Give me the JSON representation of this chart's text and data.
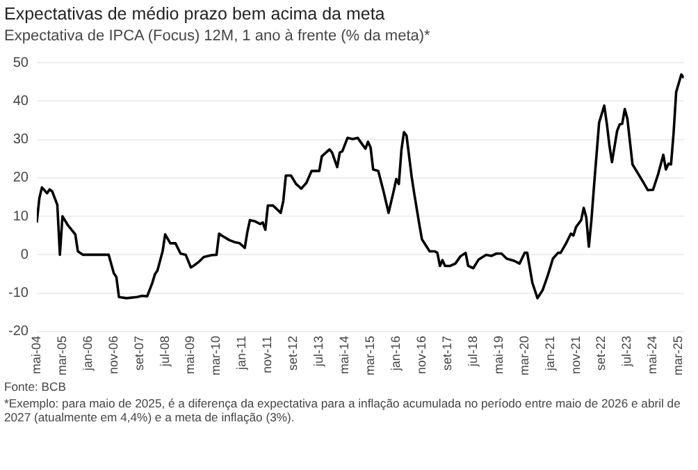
{
  "chart_data": {
    "type": "line",
    "title": "Expectativas de médio prazo bem acima da meta",
    "subtitle": "Expectativa de IPCA (Focus) 12M, 1 ano à frente (% da meta)*",
    "annotations": [
      "Fonte: BCB",
      "*Exemplo: para maio de 2025, é a diferença da expectativa para a inflação acumulada no período entre maio de 2026 e abril de 2027 (atualmente em 4,4%) e a meta de inflação (3%)."
    ],
    "x": [
      "2004-05",
      "2004-06",
      "2004-07",
      "2004-08",
      "2004-09",
      "2004-10",
      "2004-11",
      "2005-01",
      "2005-02",
      "2005-03",
      "2005-05",
      "2005-08",
      "2005-09",
      "2005-11",
      "2006-09",
      "2006-11",
      "2006-12",
      "2007-01",
      "2007-04",
      "2007-08",
      "2007-10",
      "2007-12",
      "2008-02",
      "2008-03",
      "2008-04",
      "2008-06",
      "2008-07",
      "2008-09",
      "2008-11",
      "2009-01",
      "2009-03",
      "2009-05",
      "2009-06",
      "2009-08",
      "2009-10",
      "2010-01",
      "2010-03",
      "2010-04",
      "2010-05",
      "2010-08",
      "2010-10",
      "2010-12",
      "2011-02",
      "2011-03",
      "2011-04",
      "2011-06",
      "2011-08",
      "2011-09",
      "2011-10",
      "2011-11",
      "2012-01",
      "2012-04",
      "2012-05",
      "2012-06",
      "2012-08",
      "2012-10",
      "2012-12",
      "2013-02",
      "2013-04",
      "2013-07",
      "2013-08",
      "2013-11",
      "2013-12",
      "2014-02",
      "2014-03",
      "2014-04",
      "2014-06",
      "2014-08",
      "2014-10",
      "2014-12",
      "2015-01",
      "2015-02",
      "2015-03",
      "2015-04",
      "2015-06",
      "2015-08",
      "2015-10",
      "2015-12",
      "2016-01",
      "2016-02",
      "2016-03",
      "2016-04",
      "2016-05",
      "2016-07",
      "2016-08",
      "2016-10",
      "2016-11",
      "2017-02",
      "2017-04",
      "2017-05",
      "2017-06",
      "2017-07",
      "2017-08",
      "2017-10",
      "2017-12",
      "2018-02",
      "2018-04",
      "2018-05",
      "2018-07",
      "2018-09",
      "2018-12",
      "2019-02",
      "2019-04",
      "2019-06",
      "2019-08",
      "2019-11",
      "2020-01",
      "2020-03",
      "2020-04",
      "2020-06",
      "2020-08",
      "2020-10",
      "2020-12",
      "2021-02",
      "2021-04",
      "2021-05",
      "2021-07",
      "2021-09",
      "2021-10",
      "2021-11",
      "2022-01",
      "2022-02",
      "2022-03",
      "2022-04",
      "2022-05",
      "2022-06",
      "2022-08",
      "2022-10",
      "2022-11",
      "2022-12",
      "2023-01",
      "2023-03",
      "2023-04",
      "2023-05",
      "2023-06",
      "2023-07",
      "2023-09",
      "2023-11",
      "2024-01",
      "2024-03",
      "2024-05",
      "2024-07",
      "2024-09",
      "2024-10",
      "2024-11",
      "2024-12",
      "2025-01",
      "2025-02",
      "2025-04",
      "2025-05"
    ],
    "series": [
      {
        "color": "#000000",
        "values": [
          8.4,
          14.7,
          17.5,
          16.8,
          16,
          17,
          16.5,
          13,
          0,
          10,
          7.8,
          5.3,
          0.9,
          0,
          0,
          -4.8,
          -5.8,
          -11,
          -11.3,
          -11,
          -10.7,
          -10.8,
          -7.3,
          -5.1,
          -4.1,
          0.9,
          5.3,
          3,
          3,
          0.3,
          0,
          -3.3,
          -2.9,
          -1.9,
          -0.6,
          -0.1,
          0,
          5.5,
          5,
          3.8,
          3.3,
          3,
          1.8,
          5.9,
          9,
          8.7,
          8,
          8.4,
          6.5,
          12.8,
          12.8,
          10.9,
          14,
          20.6,
          20.6,
          18.4,
          17.2,
          18.7,
          21.8,
          21.8,
          25.6,
          27.4,
          26.6,
          22.8,
          26.6,
          26.9,
          30.4,
          30.1,
          30.4,
          28.5,
          27.6,
          29.4,
          27.9,
          22.2,
          21.8,
          16.6,
          10.9,
          16.6,
          19.7,
          18.4,
          27.2,
          31.9,
          31,
          20.3,
          15.9,
          7.8,
          4,
          0.9,
          0.9,
          0.5,
          -2.9,
          -1.4,
          -2.9,
          -2.9,
          -2.3,
          -0.4,
          0.5,
          -2.9,
          -3.5,
          -1.3,
          0,
          -0.3,
          0.3,
          0.3,
          -1,
          -1.6,
          -2.3,
          0.5,
          0.5,
          -7.3,
          -11.3,
          -9.2,
          -5.4,
          -1,
          0.5,
          0.5,
          2.8,
          5.5,
          5,
          7.2,
          9,
          12.2,
          9.7,
          2.1,
          9,
          17.8,
          34.4,
          38.8,
          34.1,
          28.5,
          24.1,
          32.2,
          33.9,
          34.1,
          37.9,
          35.4,
          23.5,
          21.3,
          19.1,
          16.8,
          16.9,
          21,
          26,
          22.2,
          23.7,
          23.5,
          31.6,
          42.3,
          46.9,
          46
        ]
      }
    ],
    "xlim": [
      "2004-05",
      "2025-05"
    ],
    "xticks": [
      {
        "value": "2004-05",
        "label": "mai-04"
      },
      {
        "value": "2005-03",
        "label": "mar-05"
      },
      {
        "value": "2006-01",
        "label": "jan-06"
      },
      {
        "value": "2006-11",
        "label": "nov-06"
      },
      {
        "value": "2007-09",
        "label": "set-07"
      },
      {
        "value": "2008-07",
        "label": "jul-08"
      },
      {
        "value": "2009-05",
        "label": "mai-09"
      },
      {
        "value": "2010-03",
        "label": "mar-10"
      },
      {
        "value": "2011-01",
        "label": "jan-11"
      },
      {
        "value": "2011-11",
        "label": "nov-11"
      },
      {
        "value": "2012-09",
        "label": "set-12"
      },
      {
        "value": "2013-07",
        "label": "jul-13"
      },
      {
        "value": "2014-05",
        "label": "mai-14"
      },
      {
        "value": "2015-03",
        "label": "mar-15"
      },
      {
        "value": "2016-01",
        "label": "jan-16"
      },
      {
        "value": "2016-11",
        "label": "nov-16"
      },
      {
        "value": "2017-09",
        "label": "set-17"
      },
      {
        "value": "2018-07",
        "label": "jul-18"
      },
      {
        "value": "2019-05",
        "label": "mai-19"
      },
      {
        "value": "2020-03",
        "label": "mar-20"
      },
      {
        "value": "2021-01",
        "label": "jan-21"
      },
      {
        "value": "2021-11",
        "label": "nov-21"
      },
      {
        "value": "2022-09",
        "label": "set-22"
      },
      {
        "value": "2023-07",
        "label": "jul-23"
      },
      {
        "value": "2024-05",
        "label": "mai-24"
      },
      {
        "value": "2025-03",
        "label": "mar-25"
      }
    ],
    "ylim": [
      -20,
      50
    ],
    "yticks": [
      -20,
      -10,
      0,
      10,
      20,
      30,
      40,
      50
    ],
    "grid": "y",
    "legend": false,
    "marker": "none",
    "line_style": "solid"
  }
}
